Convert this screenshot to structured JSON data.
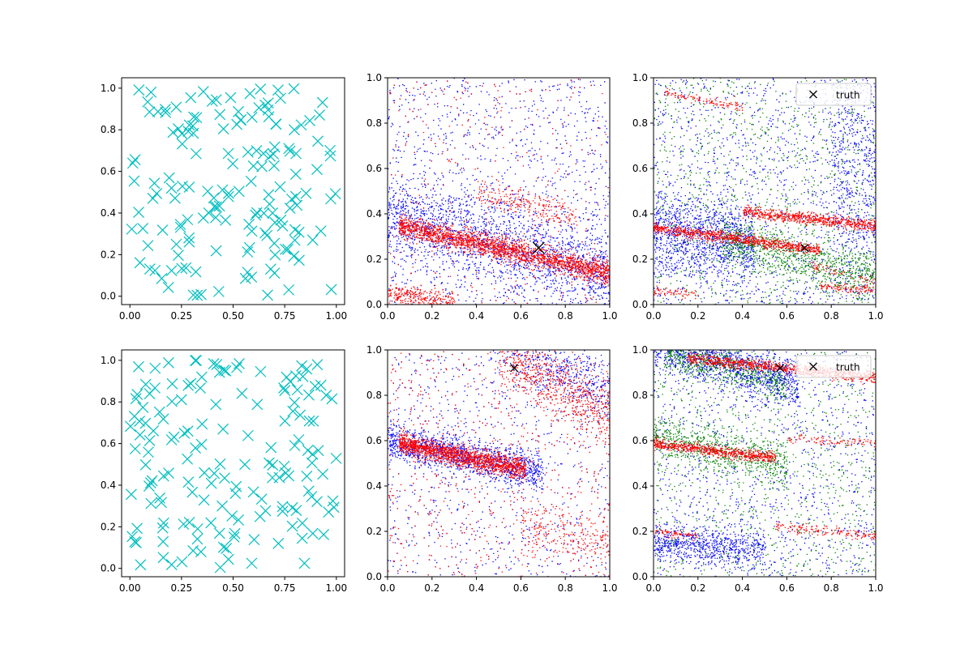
{
  "colors": {
    "cyan": "#00bfbf",
    "blue": "#0000ff",
    "red": "#ff0000",
    "green": "#008000",
    "black": "#000000"
  },
  "chart_data": [
    {
      "id": "r0c0",
      "type": "scatter",
      "xlim": [
        -0.04,
        1.04
      ],
      "ylim": [
        -0.04,
        1.05
      ],
      "xticks": [
        "0.00",
        "0.25",
        "0.50",
        "0.75",
        "1.00"
      ],
      "xtick_values": [
        0,
        0.25,
        0.5,
        0.75,
        1.0
      ],
      "yticks": [
        "0.0",
        "0.2",
        "0.4",
        "0.6",
        "0.8",
        "1.0"
      ],
      "ytick_values": [
        0,
        0.2,
        0.4,
        0.6,
        0.8,
        1.0
      ],
      "series": [
        {
          "color": "cyan",
          "marker": "x",
          "count": 160,
          "points": "uniform random over [0,1]x[0,1]"
        }
      ]
    },
    {
      "id": "r0c1",
      "type": "scatter",
      "xlim": [
        0,
        1
      ],
      "ylim": [
        0,
        1
      ],
      "xticks": [
        "0.0",
        "0.2",
        "0.4",
        "0.6",
        "0.8",
        "1.0"
      ],
      "xtick_values": [
        0,
        0.2,
        0.4,
        0.6,
        0.8,
        1.0
      ],
      "yticks": [
        "0.0",
        "0.2",
        "0.4",
        "0.6",
        "0.8",
        "1.0"
      ],
      "ytick_values": [
        0,
        0.2,
        0.4,
        0.6,
        0.8,
        1.0
      ],
      "series": [
        {
          "color": "blue",
          "marker": "dot",
          "bands": [
            {
              "x": [
                0,
                1
              ],
              "y0": 0.4,
              "slope": -0.27,
              "spread": 0.09,
              "count": 1600
            }
          ],
          "background": 1400
        },
        {
          "color": "red",
          "marker": "dot",
          "bands": [
            {
              "x": [
                0.05,
                1
              ],
              "y0": 0.36,
              "slope": -0.22,
              "spread": 0.025,
              "count": 2200
            },
            {
              "x": [
                0.4,
                0.85
              ],
              "y0": 0.6,
              "slope": -0.25,
              "spread": 0.03,
              "count": 250
            },
            {
              "x": [
                0,
                0.3
              ],
              "y0": 0.05,
              "slope": -0.12,
              "spread": 0.02,
              "count": 300
            }
          ],
          "background": 350
        }
      ],
      "truth": {
        "x": 0.68,
        "y": 0.25,
        "size": "large"
      }
    },
    {
      "id": "r0c2",
      "type": "scatter",
      "xlim": [
        0,
        1
      ],
      "ylim": [
        0,
        1
      ],
      "xticks": [
        "0.0",
        "0.2",
        "0.4",
        "0.6",
        "0.8",
        "1.0"
      ],
      "xtick_values": [
        0,
        0.2,
        0.4,
        0.6,
        0.8,
        1.0
      ],
      "yticks": [
        "0.0",
        "0.2",
        "0.4",
        "0.6",
        "0.8",
        "1.0"
      ],
      "ytick_values": [
        0,
        0.2,
        0.4,
        0.6,
        0.8,
        1.0
      ],
      "series": [
        {
          "color": "blue",
          "marker": "dot",
          "bands": [
            {
              "x": [
                0,
                0.45
              ],
              "y0": 0.32,
              "slope": -0.1,
              "spread": 0.09,
              "count": 1100
            },
            {
              "x": [
                0.8,
                1
              ],
              "y0": 0.6,
              "slope": 0,
              "spread": 0.25,
              "count": 500
            }
          ],
          "background": 1300
        },
        {
          "color": "green",
          "marker": "dot",
          "bands": [
            {
              "x": [
                0.3,
                1
              ],
              "y0": 0.37,
              "slope": -0.25,
              "spread": 0.05,
              "count": 900
            }
          ],
          "background": 1000
        },
        {
          "color": "red",
          "marker": "dot",
          "bands": [
            {
              "x": [
                0,
                0.75
              ],
              "y0": 0.34,
              "slope": -0.13,
              "spread": 0.012,
              "count": 900
            },
            {
              "x": [
                0.4,
                1
              ],
              "y0": 0.45,
              "slope": -0.1,
              "spread": 0.012,
              "count": 700
            },
            {
              "x": [
                0.05,
                0.4
              ],
              "y0": 0.94,
              "slope": -0.17,
              "spread": 0.01,
              "count": 120
            },
            {
              "x": [
                0,
                0.2
              ],
              "y0": 0.06,
              "slope": -0.05,
              "spread": 0.01,
              "count": 70
            },
            {
              "x": [
                0.75,
                1
              ],
              "y0": 0.16,
              "slope": -0.1,
              "spread": 0.01,
              "count": 110
            },
            {
              "x": [
                0.7,
                1
              ],
              "y0": 0.35,
              "slope": -0.25,
              "spread": 0.01,
              "count": 60
            }
          ]
        }
      ],
      "truth": {
        "x": 0.68,
        "y": 0.25,
        "size": "small"
      },
      "legend": {
        "label": "truth",
        "placement": "upper right"
      }
    },
    {
      "id": "r1c0",
      "type": "scatter",
      "xlim": [
        -0.04,
        1.04
      ],
      "ylim": [
        -0.04,
        1.05
      ],
      "xticks": [
        "0.00",
        "0.25",
        "0.50",
        "0.75",
        "1.00"
      ],
      "xtick_values": [
        0,
        0.25,
        0.5,
        0.75,
        1.0
      ],
      "yticks": [
        "0.0",
        "0.2",
        "0.4",
        "0.6",
        "0.8",
        "1.0"
      ],
      "ytick_values": [
        0,
        0.2,
        0.4,
        0.6,
        0.8,
        1.0
      ],
      "series": [
        {
          "color": "cyan",
          "marker": "x",
          "count": 160,
          "points": "uniform random over [0,1]x[0,1]"
        }
      ]
    },
    {
      "id": "r1c1",
      "type": "scatter",
      "xlim": [
        0,
        1
      ],
      "ylim": [
        0,
        1
      ],
      "xticks": [
        "0.0",
        "0.2",
        "0.4",
        "0.6",
        "0.8",
        "1.0"
      ],
      "xtick_values": [
        0,
        0.2,
        0.4,
        0.6,
        0.8,
        1.0
      ],
      "yticks": [
        "0.0",
        "0.2",
        "0.4",
        "0.6",
        "0.8",
        "1.0"
      ],
      "ytick_values": [
        0,
        0.2,
        0.4,
        0.6,
        0.8,
        1.0
      ],
      "series": [
        {
          "color": "blue",
          "marker": "dot",
          "bands": [
            {
              "x": [
                0,
                0.7
              ],
              "y0": 0.6,
              "slope": -0.2,
              "spread": 0.04,
              "count": 1300
            },
            {
              "x": [
                0.45,
                1
              ],
              "y0": 1.35,
              "slope": -0.55,
              "spread": 0.07,
              "count": 600
            }
          ],
          "background": 1200
        },
        {
          "color": "red",
          "marker": "dot",
          "bands": [
            {
              "x": [
                0.05,
                0.62
              ],
              "y0": 0.6,
              "slope": -0.2,
              "spread": 0.022,
              "count": 1600
            },
            {
              "x": [
                0.5,
                1
              ],
              "y0": 1.3,
              "slope": -0.6,
              "spread": 0.07,
              "count": 700
            },
            {
              "x": [
                0.6,
                1
              ],
              "y0": 0.32,
              "slope": -0.16,
              "spread": 0.06,
              "count": 250
            }
          ],
          "background": 700
        }
      ],
      "truth": {
        "x": 0.57,
        "y": 0.92,
        "size": "small"
      }
    },
    {
      "id": "r1c2",
      "type": "scatter",
      "xlim": [
        0,
        1
      ],
      "ylim": [
        0,
        1
      ],
      "xticks": [
        "0.0",
        "0.2",
        "0.4",
        "0.6",
        "0.8",
        "1.0"
      ],
      "xtick_values": [
        0,
        0.2,
        0.4,
        0.6,
        0.8,
        1.0
      ],
      "yticks": [
        "0.0",
        "0.2",
        "0.4",
        "0.6",
        "0.8",
        "1.0"
      ],
      "ytick_values": [
        0,
        0.2,
        0.4,
        0.6,
        0.8,
        1.0
      ],
      "series": [
        {
          "color": "blue",
          "marker": "dot",
          "bands": [
            {
              "x": [
                0,
                0.65
              ],
              "y0": 1.02,
              "slope": -0.25,
              "spread": 0.05,
              "count": 1200
            },
            {
              "x": [
                0,
                0.5
              ],
              "y0": 0.15,
              "slope": -0.05,
              "spread": 0.04,
              "count": 700
            }
          ],
          "background": 1100
        },
        {
          "color": "green",
          "marker": "dot",
          "bands": [
            {
              "x": [
                0,
                0.6
              ],
              "y0": 0.62,
              "slope": -0.22,
              "spread": 0.05,
              "count": 700
            },
            {
              "x": [
                0.05,
                0.6
              ],
              "y0": 1.0,
              "slope": -0.25,
              "spread": 0.04,
              "count": 600
            }
          ],
          "background": 900
        },
        {
          "color": "red",
          "marker": "dot",
          "bands": [
            {
              "x": [
                0.15,
                1
              ],
              "y0": 0.98,
              "slope": -0.1,
              "spread": 0.012,
              "count": 900
            },
            {
              "x": [
                0,
                0.55
              ],
              "y0": 0.59,
              "slope": -0.12,
              "spread": 0.012,
              "count": 700
            },
            {
              "x": [
                0.6,
                1
              ],
              "y0": 0.64,
              "slope": -0.05,
              "spread": 0.01,
              "count": 100
            },
            {
              "x": [
                0.55,
                1
              ],
              "y0": 0.28,
              "slope": -0.1,
              "spread": 0.01,
              "count": 160
            },
            {
              "x": [
                0,
                0.2
              ],
              "y0": 0.2,
              "slope": -0.1,
              "spread": 0.01,
              "count": 70
            }
          ]
        }
      ],
      "truth": {
        "x": 0.57,
        "y": 0.92,
        "size": "small"
      },
      "legend": {
        "label": "truth",
        "placement": "upper right"
      }
    }
  ]
}
